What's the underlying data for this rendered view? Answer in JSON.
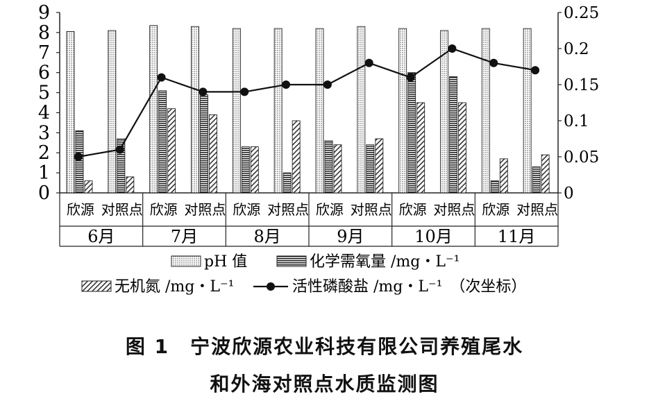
{
  "chart_data": {
    "type": "bar",
    "groups": [
      "6月",
      "7月",
      "8月",
      "9月",
      "10月",
      "11月"
    ],
    "sites": [
      "欣源",
      "对照点"
    ],
    "categories": [
      "欣源",
      "对照点",
      "欣源",
      "对照点",
      "欣源",
      "对照点",
      "欣源",
      "对照点",
      "欣源",
      "对照点",
      "欣源",
      "对照点"
    ],
    "series": [
      {
        "name": "pH 值",
        "kind": "bar",
        "axis": "left",
        "pattern": "dots",
        "values": [
          8.05,
          8.1,
          8.35,
          8.3,
          8.2,
          8.2,
          8.2,
          8.3,
          8.2,
          8.1,
          8.2,
          8.2
        ]
      },
      {
        "name": "化学需氧量 /mg・L⁻¹",
        "kind": "bar",
        "axis": "left",
        "pattern": "hlines",
        "values": [
          3.1,
          2.7,
          5.1,
          4.9,
          2.3,
          1.0,
          2.6,
          2.4,
          6.0,
          5.8,
          0.6,
          1.3
        ]
      },
      {
        "name": "无机氮 /mg・L⁻¹",
        "kind": "bar",
        "axis": "left",
        "pattern": "diag",
        "values": [
          0.6,
          0.8,
          4.2,
          3.9,
          2.3,
          3.6,
          2.4,
          2.7,
          4.5,
          4.5,
          1.7,
          1.9
        ]
      },
      {
        "name": "活性磷酸盐 /mg・L⁻¹",
        "kind": "line",
        "axis": "right",
        "values": [
          0.05,
          0.06,
          0.16,
          0.14,
          0.14,
          0.15,
          0.15,
          0.18,
          0.16,
          0.2,
          0.18,
          0.17
        ]
      }
    ],
    "ylim_left": [
      0,
      9
    ],
    "yticks_left": [
      "0",
      "1",
      "2",
      "3",
      "4",
      "5",
      "6",
      "7",
      "8",
      "9"
    ],
    "ylim_right": [
      0,
      0.25
    ],
    "yticks_right": [
      "0",
      "0.05",
      "0.1",
      "0.15",
      "0.2",
      "0.25"
    ],
    "legend_line2_suffix": "（次坐标）",
    "grid": false,
    "legend_position": "bottom"
  },
  "caption": {
    "line1": "图 1　宁波欣源农业科技有限公司养殖尾水",
    "line2": "和外海对照点水质监测图"
  }
}
